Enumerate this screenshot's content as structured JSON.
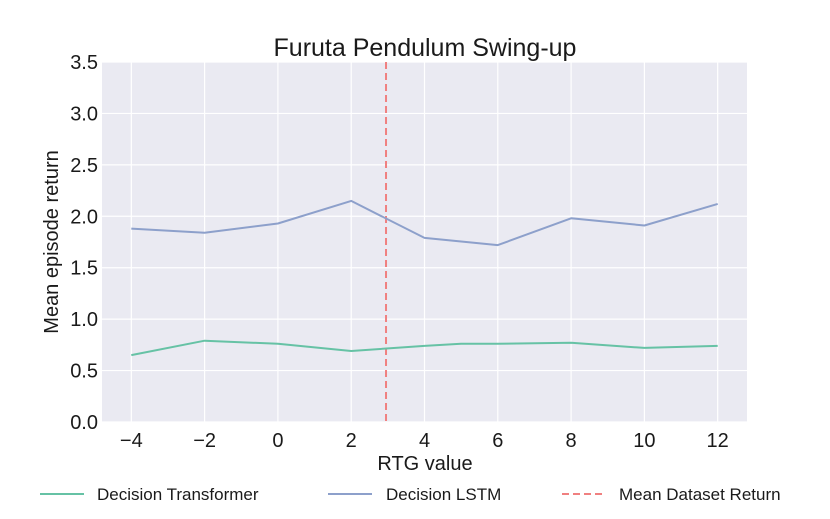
{
  "chart_data": {
    "type": "line",
    "title": "Furuta Pendulum Swing-up",
    "xlabel": "RTG value",
    "ylabel": "Mean episode return",
    "xlim": [
      -4.8,
      12.8
    ],
    "ylim": [
      0.0,
      3.5
    ],
    "xticks": [
      -4,
      -2,
      0,
      2,
      4,
      6,
      8,
      10,
      12
    ],
    "xtick_labels": [
      "−4",
      "−2",
      "0",
      "2",
      "4",
      "6",
      "8",
      "10",
      "12"
    ],
    "yticks": [
      0.0,
      0.5,
      1.0,
      1.5,
      2.0,
      2.5,
      3.0,
      3.5
    ],
    "ytick_labels": [
      "0.0",
      "0.5",
      "1.0",
      "1.5",
      "2.0",
      "2.5",
      "3.0",
      "3.5"
    ],
    "grid": true,
    "legend_position": "bottom",
    "series": [
      {
        "name": "Decision Transformer",
        "color": "#66c2a5",
        "x": [
          -4,
          -2,
          0,
          2,
          4,
          5,
          6,
          8,
          10,
          12
        ],
        "y": [
          0.65,
          0.79,
          0.76,
          0.69,
          0.74,
          0.76,
          0.76,
          0.77,
          0.72,
          0.74
        ]
      },
      {
        "name": "Decision LSTM",
        "color": "#8da0cb",
        "x": [
          -4,
          -2,
          0,
          2,
          4,
          6,
          8,
          10,
          12
        ],
        "y": [
          1.88,
          1.84,
          1.93,
          2.15,
          1.79,
          1.72,
          1.98,
          1.91,
          2.12
        ]
      }
    ],
    "reference_line": {
      "name": "Mean Dataset Return",
      "color": "#f08080",
      "x": 2.95,
      "style": "dashed"
    }
  }
}
